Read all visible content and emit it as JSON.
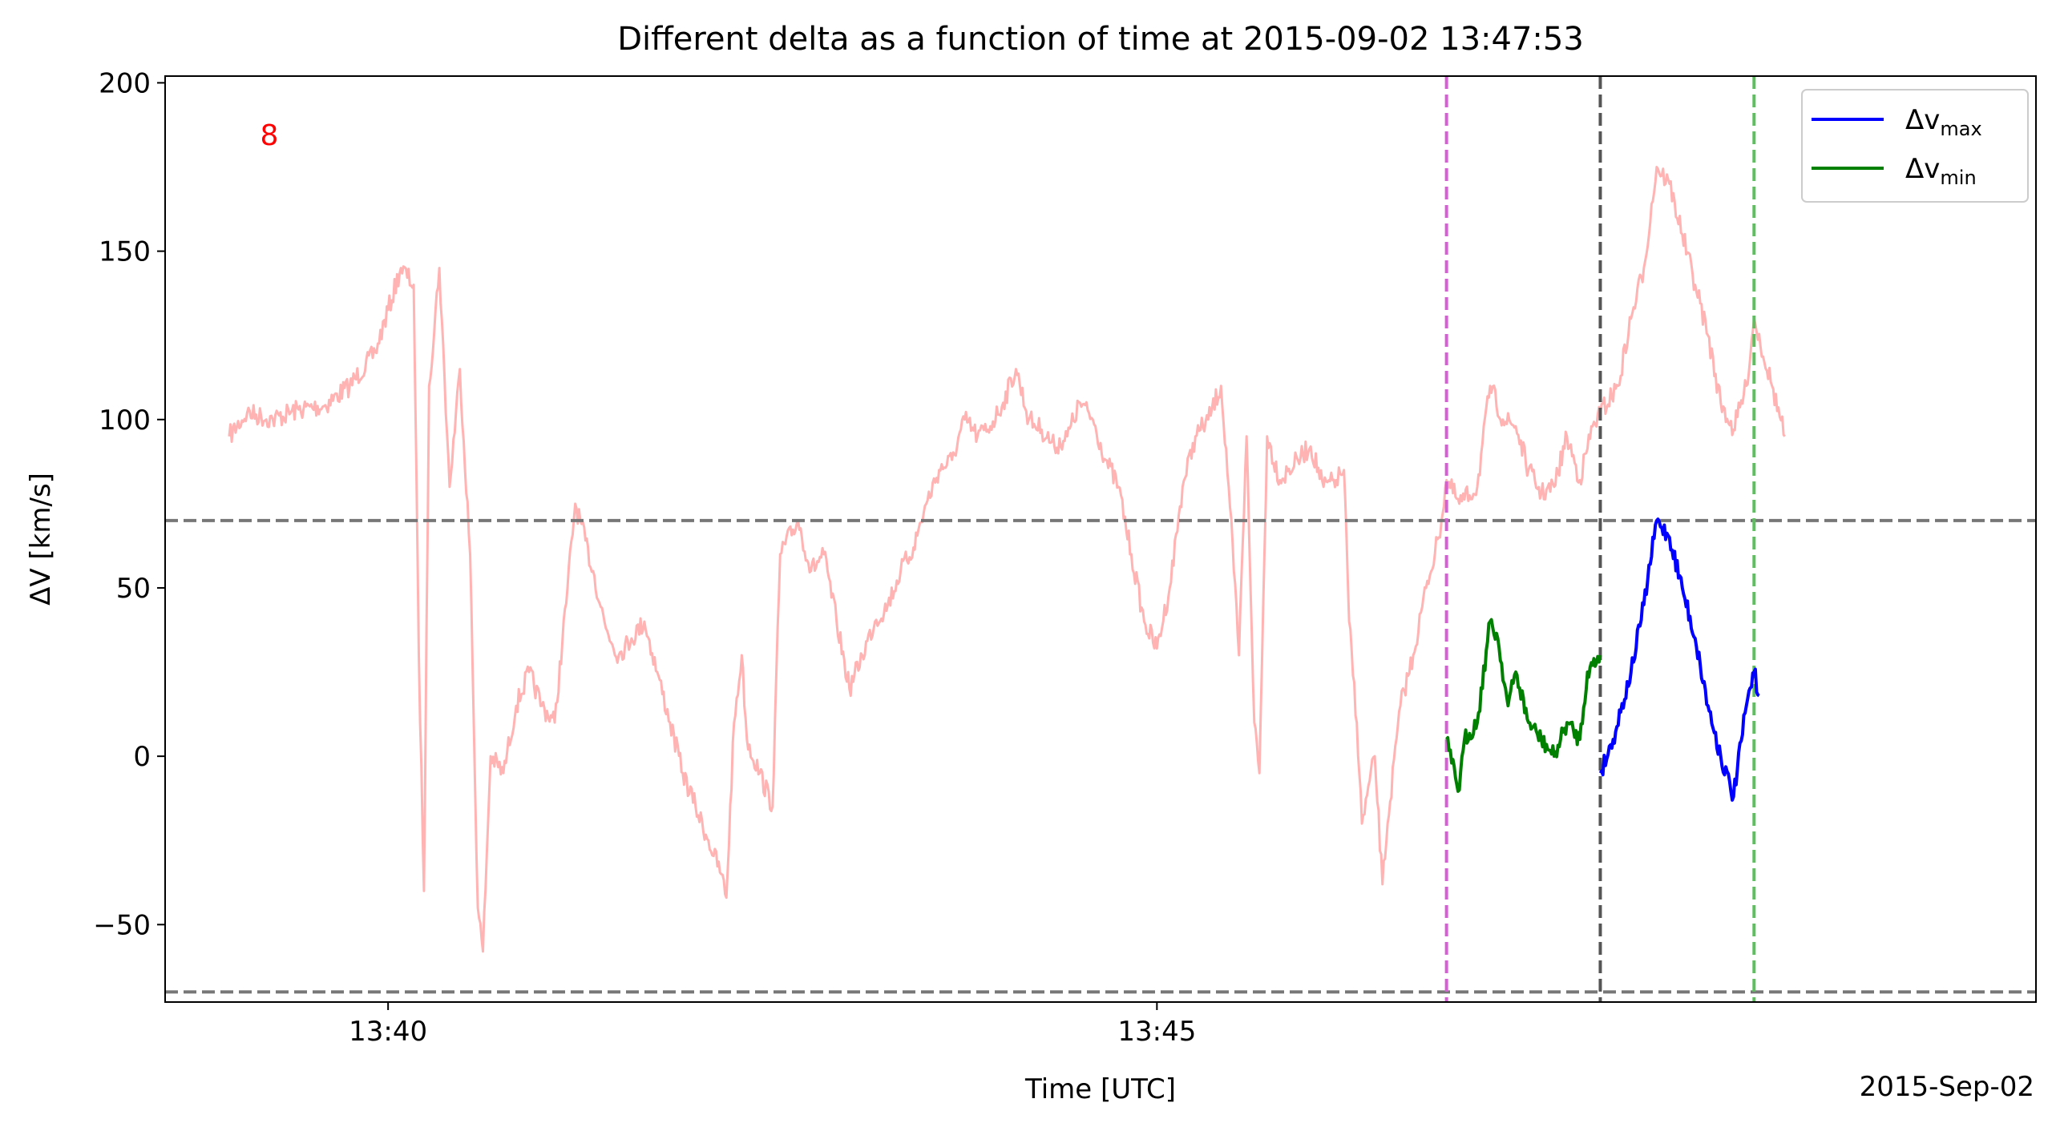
{
  "chart_data": {
    "type": "line",
    "title": "Different delta as a function of time at 2015-09-02 13:47:53",
    "xlabel": "Time [UTC]",
    "ylabel_prefix": "ΔV",
    "ylabel_suffix": " [km/s]",
    "x_offset_label": "2015-Sep-02",
    "annotation": "8",
    "xlim": [
      "13:38:33",
      "13:50:43"
    ],
    "ylim": [
      -73,
      202
    ],
    "x_ticks": [
      {
        "t": "13:40:00",
        "label": "13:40"
      },
      {
        "t": "13:45:00",
        "label": "13:45"
      }
    ],
    "y_ticks": [
      {
        "v": -50,
        "label": "−50"
      },
      {
        "v": 0,
        "label": "0"
      },
      {
        "v": 50,
        "label": "50"
      },
      {
        "v": 100,
        "label": "100"
      },
      {
        "v": 150,
        "label": "150"
      },
      {
        "v": 200,
        "label": "200"
      }
    ],
    "horizontal_lines": [
      70,
      -70
    ],
    "vertical_lines": [
      {
        "t": "13:46:53",
        "color": "#d65fd6"
      },
      {
        "t": "13:47:53",
        "color": "#555555"
      },
      {
        "t": "13:48:53",
        "color": "#5fbf5f"
      }
    ],
    "legend": {
      "placement": "top-right",
      "entries": [
        {
          "base": "Δv",
          "sub": "max",
          "color": "#0000ff"
        },
        {
          "base": "Δv",
          "sub": "min",
          "color": "#008000"
        }
      ]
    },
    "series": [
      {
        "role": "background",
        "color": "#ffb3b3",
        "points": [
          [
            "13:38:58",
            95
          ],
          [
            "13:39:05",
            102
          ],
          [
            "13:39:15",
            100
          ],
          [
            "13:39:25",
            103
          ],
          [
            "13:39:35",
            104
          ],
          [
            "13:39:45",
            110
          ],
          [
            "13:39:55",
            120
          ],
          [
            "13:40:05",
            145
          ],
          [
            "13:40:10",
            140
          ],
          [
            "13:40:12",
            30
          ],
          [
            "13:40:14",
            -40
          ],
          [
            "13:40:16",
            110
          ],
          [
            "13:40:20",
            145
          ],
          [
            "13:40:24",
            80
          ],
          [
            "13:40:28",
            115
          ],
          [
            "13:40:32",
            60
          ],
          [
            "13:40:35",
            -45
          ],
          [
            "13:40:37",
            -58
          ],
          [
            "13:40:40",
            0
          ],
          [
            "13:40:45",
            -5
          ],
          [
            "13:40:50",
            15
          ],
          [
            "13:40:55",
            25
          ],
          [
            "13:41:00",
            15
          ],
          [
            "13:41:05",
            10
          ],
          [
            "13:41:10",
            50
          ],
          [
            "13:41:13",
            75
          ],
          [
            "13:41:20",
            55
          ],
          [
            "13:41:25",
            38
          ],
          [
            "13:41:30",
            30
          ],
          [
            "13:41:35",
            35
          ],
          [
            "13:41:40",
            40
          ],
          [
            "13:41:45",
            25
          ],
          [
            "13:41:50",
            10
          ],
          [
            "13:41:55",
            -5
          ],
          [
            "13:42:00",
            -15
          ],
          [
            "13:42:05",
            -25
          ],
          [
            "13:42:10",
            -35
          ],
          [
            "13:42:12",
            -42
          ],
          [
            "13:42:15",
            10
          ],
          [
            "13:42:18",
            30
          ],
          [
            "13:42:20",
            5
          ],
          [
            "13:42:25",
            -5
          ],
          [
            "13:42:30",
            -15
          ],
          [
            "13:42:33",
            60
          ],
          [
            "13:42:40",
            70
          ],
          [
            "13:42:45",
            55
          ],
          [
            "13:42:50",
            60
          ],
          [
            "13:42:55",
            40
          ],
          [
            "13:43:00",
            20
          ],
          [
            "13:43:05",
            30
          ],
          [
            "13:43:10",
            40
          ],
          [
            "13:43:15",
            45
          ],
          [
            "13:43:20",
            55
          ],
          [
            "13:43:25",
            62
          ],
          [
            "13:43:30",
            75
          ],
          [
            "13:43:35",
            85
          ],
          [
            "13:43:40",
            88
          ],
          [
            "13:43:45",
            100
          ],
          [
            "13:43:50",
            95
          ],
          [
            "13:43:55",
            98
          ],
          [
            "13:44:00",
            105
          ],
          [
            "13:44:05",
            115
          ],
          [
            "13:44:10",
            100
          ],
          [
            "13:44:15",
            97
          ],
          [
            "13:44:20",
            92
          ],
          [
            "13:44:25",
            95
          ],
          [
            "13:44:30",
            105
          ],
          [
            "13:44:35",
            100
          ],
          [
            "13:44:40",
            88
          ],
          [
            "13:44:45",
            80
          ],
          [
            "13:44:50",
            60
          ],
          [
            "13:44:55",
            40
          ],
          [
            "13:45:00",
            32
          ],
          [
            "13:45:05",
            50
          ],
          [
            "13:45:10",
            80
          ],
          [
            "13:45:15",
            95
          ],
          [
            "13:45:20",
            100
          ],
          [
            "13:45:25",
            110
          ],
          [
            "13:45:28",
            80
          ],
          [
            "13:45:30",
            55
          ],
          [
            "13:45:32",
            30
          ],
          [
            "13:45:35",
            95
          ],
          [
            "13:45:38",
            10
          ],
          [
            "13:45:40",
            -5
          ],
          [
            "13:45:43",
            95
          ],
          [
            "13:45:48",
            82
          ],
          [
            "13:45:55",
            88
          ],
          [
            "13:46:00",
            92
          ],
          [
            "13:46:05",
            80
          ],
          [
            "13:46:10",
            82
          ],
          [
            "13:46:13",
            85
          ],
          [
            "13:46:15",
            40
          ],
          [
            "13:46:18",
            10
          ],
          [
            "13:46:20",
            -20
          ],
          [
            "13:46:25",
            0
          ],
          [
            "13:46:28",
            -38
          ],
          [
            "13:46:30",
            -20
          ],
          [
            "13:46:35",
            15
          ],
          [
            "13:46:40",
            30
          ],
          [
            "13:46:45",
            50
          ],
          [
            "13:46:50",
            65
          ],
          [
            "13:46:53",
            82
          ],
          [
            "13:46:58",
            75
          ],
          [
            "13:47:05",
            80
          ],
          [
            "13:47:10",
            110
          ],
          [
            "13:47:15",
            100
          ],
          [
            "13:47:20",
            98
          ],
          [
            "13:47:25",
            85
          ],
          [
            "13:47:30",
            78
          ],
          [
            "13:47:35",
            80
          ],
          [
            "13:47:40",
            95
          ],
          [
            "13:47:45",
            82
          ],
          [
            "13:47:50",
            98
          ],
          [
            "13:47:53",
            102
          ],
          [
            "13:48:00",
            110
          ],
          [
            "13:48:05",
            130
          ],
          [
            "13:48:10",
            145
          ],
          [
            "13:48:15",
            175
          ],
          [
            "13:48:20",
            170
          ],
          [
            "13:48:25",
            155
          ],
          [
            "13:48:30",
            140
          ],
          [
            "13:48:35",
            125
          ],
          [
            "13:48:40",
            105
          ],
          [
            "13:48:45",
            97
          ],
          [
            "13:48:50",
            110
          ],
          [
            "13:48:53",
            130
          ],
          [
            "13:49:00",
            110
          ],
          [
            "13:49:05",
            95
          ]
        ]
      },
      {
        "name": "Δv_min",
        "color": "#008000",
        "points": [
          [
            "13:46:53",
            5
          ],
          [
            "13:46:55",
            -2
          ],
          [
            "13:46:58",
            -10
          ],
          [
            "13:47:00",
            5
          ],
          [
            "13:47:05",
            10
          ],
          [
            "13:47:10",
            40
          ],
          [
            "13:47:13",
            35
          ],
          [
            "13:47:17",
            15
          ],
          [
            "13:47:20",
            25
          ],
          [
            "13:47:25",
            10
          ],
          [
            "13:47:30",
            5
          ],
          [
            "13:47:35",
            0
          ],
          [
            "13:47:40",
            10
          ],
          [
            "13:47:45",
            5
          ],
          [
            "13:47:48",
            25
          ],
          [
            "13:47:53",
            30
          ]
        ]
      },
      {
        "name": "Δv_max",
        "color": "#0000ff",
        "points": [
          [
            "13:47:53",
            -5
          ],
          [
            "13:47:58",
            5
          ],
          [
            "13:48:05",
            25
          ],
          [
            "13:48:10",
            45
          ],
          [
            "13:48:15",
            70
          ],
          [
            "13:48:20",
            65
          ],
          [
            "13:48:25",
            50
          ],
          [
            "13:48:30",
            35
          ],
          [
            "13:48:35",
            15
          ],
          [
            "13:48:40",
            0
          ],
          [
            "13:48:45",
            -12
          ],
          [
            "13:48:50",
            15
          ],
          [
            "13:48:53",
            25
          ],
          [
            "13:48:55",
            18
          ]
        ]
      }
    ]
  }
}
